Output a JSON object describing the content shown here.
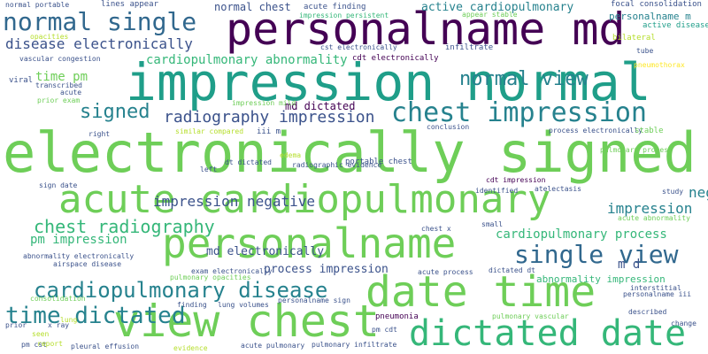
{
  "palette": {
    "dark_purple": "#440154",
    "indigo": "#3b528b",
    "blue": "#31688e",
    "teal_blue": "#26828e",
    "teal": "#1f9e89",
    "green": "#35b779",
    "light_green": "#6ece58",
    "lime": "#b5de2b",
    "yellow": "#fde725"
  },
  "words": [
    "personalname md",
    "impression normal",
    "electronically signed",
    "acute cardiopulmonary",
    "personalname",
    "date time",
    "view chest",
    "dictated date",
    "normal single",
    "time dictated",
    "chest impression",
    "single view",
    "cardiopulmonary disease",
    "chest radiography",
    "normal view",
    "signed",
    "disease electronically",
    "radiography impression",
    "impression negative",
    "impression",
    "cardiopulmonary process",
    "negative chest",
    "cardiopulmonary abnormality",
    "active cardiopulmonary",
    "pm impression",
    "md electronically",
    "process impression",
    "md dictated",
    "normal chest",
    "time pm",
    "m d",
    "abnormality impression",
    "personalname m",
    "lines appear",
    "acute finding",
    "impression persistent",
    "appear stable",
    "focal consolidation",
    "normal portable",
    "opacities",
    "cst electronically",
    "infiltrate",
    "cdt electronically",
    "vascular congestion",
    "active disease",
    "bilateral",
    "tube",
    "viral",
    "transcribed",
    "acute",
    "prior exam",
    "pneumothorax",
    "impression mild",
    "iii m",
    "right",
    "similar compared",
    "conclusion",
    "process electronically",
    "left",
    "stable",
    "edema",
    "radiographic evidence",
    "dt dictated",
    "portable chest",
    "sign date",
    "identified",
    "cdt impression",
    "pulmonary process",
    "atelectasis",
    "study",
    "acute abnormality",
    "chest x",
    "small",
    "abnormality electronically",
    "airspace disease",
    "exam electronically",
    "acute process",
    "dictated dt",
    "interstitial",
    "personalname iii",
    "pulmonary opacities",
    "consolidation",
    "finding",
    "lung volumes",
    "personalname sign",
    "described",
    "pneumonia",
    "pm cst",
    "prior",
    "x ray",
    "seen",
    "lung",
    "pm cdt",
    "pulmonary vascular",
    "change",
    "report",
    "pleural effusion",
    "acute pulmonary",
    "pulmonary infiltrate",
    "evidence"
  ]
}
